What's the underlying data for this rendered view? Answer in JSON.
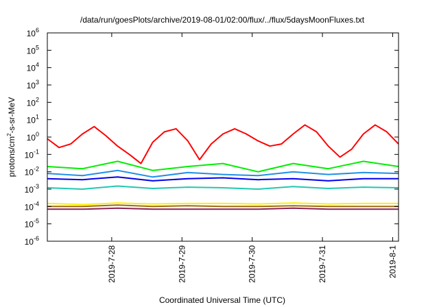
{
  "chart_data": {
    "type": "line",
    "title": "/data/run/goesPlots/archive/2019-08-01/02:00/flux/../flux/5daysMoonFluxes.txt",
    "xlabel": "Coordinated Universal Time (UTC)",
    "ylabel": {
      "pre": "protons/cm",
      "sup": "2",
      "post": "-s-sr-MeV"
    },
    "yscale": "log",
    "ylim": [
      1e-06,
      1000000.0
    ],
    "yticks": [
      {
        "value": 1e-06,
        "base": "10",
        "exp": "-6"
      },
      {
        "value": 1e-05,
        "base": "10",
        "exp": "-5"
      },
      {
        "value": 0.0001,
        "base": "10",
        "exp": "-4"
      },
      {
        "value": 0.001,
        "base": "10",
        "exp": "-3"
      },
      {
        "value": 0.01,
        "base": "10",
        "exp": "-2"
      },
      {
        "value": 0.1,
        "base": "10",
        "exp": "-1"
      },
      {
        "value": 1,
        "base": "10",
        "exp": "0"
      },
      {
        "value": 10.0,
        "base": "10",
        "exp": "1"
      },
      {
        "value": 100.0,
        "base": "10",
        "exp": "2"
      },
      {
        "value": 1000.0,
        "base": "10",
        "exp": "3"
      },
      {
        "value": 10000.0,
        "base": "10",
        "exp": "4"
      },
      {
        "value": 100000.0,
        "base": "10",
        "exp": "5"
      },
      {
        "value": 1000000.0,
        "base": "10",
        "exp": "6"
      }
    ],
    "xlim": [
      "2019-07-27T02:00",
      "2019-08-01T02:00"
    ],
    "xticks": [
      {
        "value": "2019-07-28T00:00",
        "label": "2019-7-28"
      },
      {
        "value": "2019-07-29T00:00",
        "label": "2019-7-29"
      },
      {
        "value": "2019-07-30T00:00",
        "label": "2019-7-30"
      },
      {
        "value": "2019-07-31T00:00",
        "label": "2019-7-31"
      },
      {
        "value": "2019-08-01T00:00",
        "label": "2019-8-1"
      }
    ],
    "grid": false,
    "legend": "none",
    "series": [
      {
        "color": "#ff0000",
        "x": [
          "2019-07-27T02:00",
          "2019-07-27T06:00",
          "2019-07-27T10:00",
          "2019-07-27T14:00",
          "2019-07-27T18:00",
          "2019-07-27T22:00",
          "2019-07-28T02:00",
          "2019-07-28T06:00",
          "2019-07-28T10:00",
          "2019-07-28T14:00",
          "2019-07-28T18:00",
          "2019-07-28T22:00",
          "2019-07-29T02:00",
          "2019-07-29T06:00",
          "2019-07-29T10:00",
          "2019-07-29T14:00",
          "2019-07-29T18:00",
          "2019-07-29T22:00",
          "2019-07-30T02:00",
          "2019-07-30T06:00",
          "2019-07-30T10:00",
          "2019-07-30T14:00",
          "2019-07-30T18:00",
          "2019-07-30T22:00",
          "2019-07-31T02:00",
          "2019-07-31T06:00",
          "2019-07-31T10:00",
          "2019-07-31T14:00",
          "2019-07-31T18:00",
          "2019-07-31T22:00",
          "2019-08-01T02:00"
        ],
        "y": [
          0.8,
          0.25,
          0.4,
          1.5,
          4,
          1.2,
          0.3,
          0.1,
          0.03,
          0.5,
          2,
          3,
          0.6,
          0.05,
          0.4,
          1.5,
          3,
          1.5,
          0.6,
          0.3,
          0.4,
          1.5,
          5,
          2,
          0.3,
          0.07,
          0.2,
          1.5,
          5,
          2,
          0.4
        ]
      },
      {
        "color": "#00ee00",
        "x": [
          "2019-07-27T02:00",
          "2019-07-27T14:00",
          "2019-07-28T02:00",
          "2019-07-28T14:00",
          "2019-07-29T02:00",
          "2019-07-29T14:00",
          "2019-07-30T02:00",
          "2019-07-30T14:00",
          "2019-07-31T02:00",
          "2019-07-31T14:00",
          "2019-08-01T02:00"
        ],
        "y": [
          0.02,
          0.015,
          0.04,
          0.012,
          0.02,
          0.03,
          0.01,
          0.03,
          0.015,
          0.04,
          0.02
        ]
      },
      {
        "color": "#1f8fe6",
        "x": [
          "2019-07-27T02:00",
          "2019-07-27T14:00",
          "2019-07-28T02:00",
          "2019-07-28T14:00",
          "2019-07-29T02:00",
          "2019-07-29T14:00",
          "2019-07-30T02:00",
          "2019-07-30T14:00",
          "2019-07-31T02:00",
          "2019-07-31T14:00",
          "2019-08-01T02:00"
        ],
        "y": [
          0.008,
          0.006,
          0.012,
          0.005,
          0.009,
          0.007,
          0.006,
          0.01,
          0.007,
          0.009,
          0.008
        ]
      },
      {
        "color": "#0000ee",
        "x": [
          "2019-07-27T02:00",
          "2019-07-27T14:00",
          "2019-07-28T02:00",
          "2019-07-28T14:00",
          "2019-07-29T02:00",
          "2019-07-29T14:00",
          "2019-07-30T02:00",
          "2019-07-30T14:00",
          "2019-07-31T02:00",
          "2019-07-31T14:00",
          "2019-08-01T02:00"
        ],
        "y": [
          0.004,
          0.0035,
          0.005,
          0.003,
          0.004,
          0.0045,
          0.0035,
          0.004,
          0.003,
          0.004,
          0.004
        ]
      },
      {
        "color": "#20c8b0",
        "x": [
          "2019-07-27T02:00",
          "2019-07-27T14:00",
          "2019-07-28T02:00",
          "2019-07-28T14:00",
          "2019-07-29T02:00",
          "2019-07-29T14:00",
          "2019-07-30T02:00",
          "2019-07-30T14:00",
          "2019-07-31T02:00",
          "2019-07-31T14:00",
          "2019-08-01T02:00"
        ],
        "y": [
          0.0012,
          0.001,
          0.0015,
          0.0011,
          0.0013,
          0.0012,
          0.001,
          0.0014,
          0.0011,
          0.0013,
          0.0012
        ]
      },
      {
        "color": "#ffee00",
        "x": [
          "2019-07-27T02:00",
          "2019-07-27T14:00",
          "2019-07-28T02:00",
          "2019-07-28T14:00",
          "2019-07-29T02:00",
          "2019-07-29T14:00",
          "2019-07-30T02:00",
          "2019-07-30T14:00",
          "2019-07-31T02:00",
          "2019-07-31T14:00",
          "2019-08-01T02:00"
        ],
        "y": [
          0.00015,
          0.00013,
          0.00016,
          0.00014,
          0.00015,
          0.00015,
          0.00014,
          0.00016,
          0.00014,
          0.00015,
          0.00015
        ]
      },
      {
        "color": "#a06a10",
        "x": [
          "2019-07-27T02:00",
          "2019-07-27T14:00",
          "2019-07-28T02:00",
          "2019-07-28T14:00",
          "2019-07-29T02:00",
          "2019-07-29T14:00",
          "2019-07-30T02:00",
          "2019-07-30T14:00",
          "2019-07-31T02:00",
          "2019-07-31T14:00",
          "2019-08-01T02:00"
        ],
        "y": [
          0.0001,
          0.0001,
          0.00012,
          0.0001,
          0.00011,
          0.0001,
          0.0001,
          0.00011,
          0.0001,
          0.0001,
          0.0001
        ]
      },
      {
        "color": "#8b2252",
        "x": [
          "2019-07-27T02:00",
          "2019-07-27T14:00",
          "2019-07-28T02:00",
          "2019-07-28T14:00",
          "2019-07-29T02:00",
          "2019-07-29T14:00",
          "2019-07-30T02:00",
          "2019-07-30T14:00",
          "2019-07-31T02:00",
          "2019-07-31T14:00",
          "2019-08-01T02:00"
        ],
        "y": [
          7e-05,
          7e-05,
          8e-05,
          7e-05,
          7e-05,
          7e-05,
          7e-05,
          8e-05,
          7e-05,
          7e-05,
          7e-05
        ]
      }
    ]
  }
}
